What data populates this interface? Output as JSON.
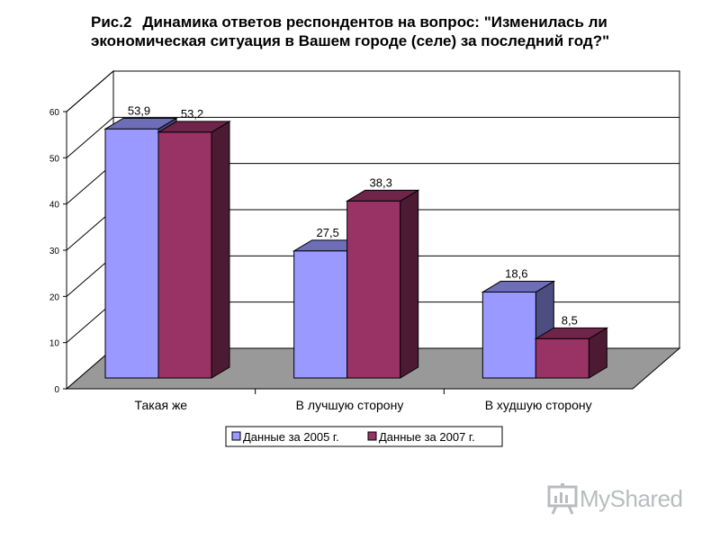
{
  "title": {
    "prefix": "Рис.2",
    "line1": "Динамика ответов респондентов на вопрос: \"Изменилась ли",
    "line2": "экономическая ситуация в Вашем городе (селе) за последний год?\""
  },
  "chart_data": {
    "type": "bar",
    "three_d": true,
    "categories": [
      "Такая же",
      "В лучшую сторону",
      "В худшую сторону"
    ],
    "series": [
      {
        "name": "Данные за 2005 г.",
        "values": [
          53.9,
          27.5,
          18.6
        ],
        "color": "#9999ff",
        "data_labels": [
          "53,9",
          "27,5",
          "18,6"
        ]
      },
      {
        "name": "Данные за 2007 г.",
        "values": [
          53.2,
          38.3,
          8.5
        ],
        "color": "#993366",
        "data_labels": [
          "53,2",
          "38,3",
          "8,5"
        ]
      }
    ],
    "ylim": [
      0,
      60
    ],
    "yticks": [
      "0",
      "10",
      "20",
      "30",
      "40",
      "50",
      "60"
    ],
    "grid": true,
    "legend_position": "bottom",
    "floor_color": "#999999"
  },
  "watermark": {
    "text": "MyShared"
  },
  "colors": {
    "series_2005": "#9999ff",
    "series_2007": "#993366"
  }
}
